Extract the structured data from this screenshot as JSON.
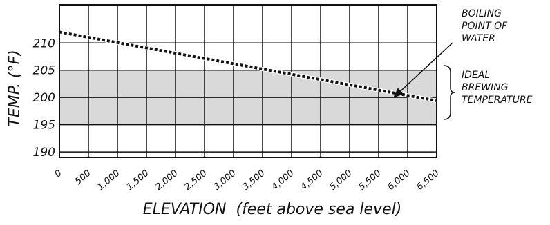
{
  "chart_data": {
    "type": "line",
    "xlabel": "ELEVATION  (feet above sea level)",
    "ylabel": "TEMP.  (°F)",
    "x_ticks": [
      "0",
      "500",
      "1,000",
      "1,500",
      "2,000",
      "2,500",
      "3,000",
      "3,500",
      "4,000",
      "4,500",
      "5,000",
      "5,500",
      "6,000",
      "6,500"
    ],
    "y_ticks": [
      "190",
      "195",
      "200",
      "205",
      "210"
    ],
    "xlim": [
      0,
      6500
    ],
    "ylim": [
      189,
      217
    ],
    "grid": true,
    "series": [
      {
        "name": "BOILING POINT OF WATER",
        "style": "dashed",
        "x": [
          0,
          6500
        ],
        "y": [
          212,
          199.4
        ]
      }
    ],
    "band": {
      "label": "IDEAL BREWING TEMPERATURE",
      "y_range": [
        195,
        205
      ],
      "color": "#d9d9d9"
    },
    "annotations": {
      "boiling_lines": [
        "BOILING",
        "POINT OF",
        "WATER"
      ],
      "brewing_lines": [
        "IDEAL",
        "BREWING",
        "TEMPERATURE"
      ]
    }
  }
}
